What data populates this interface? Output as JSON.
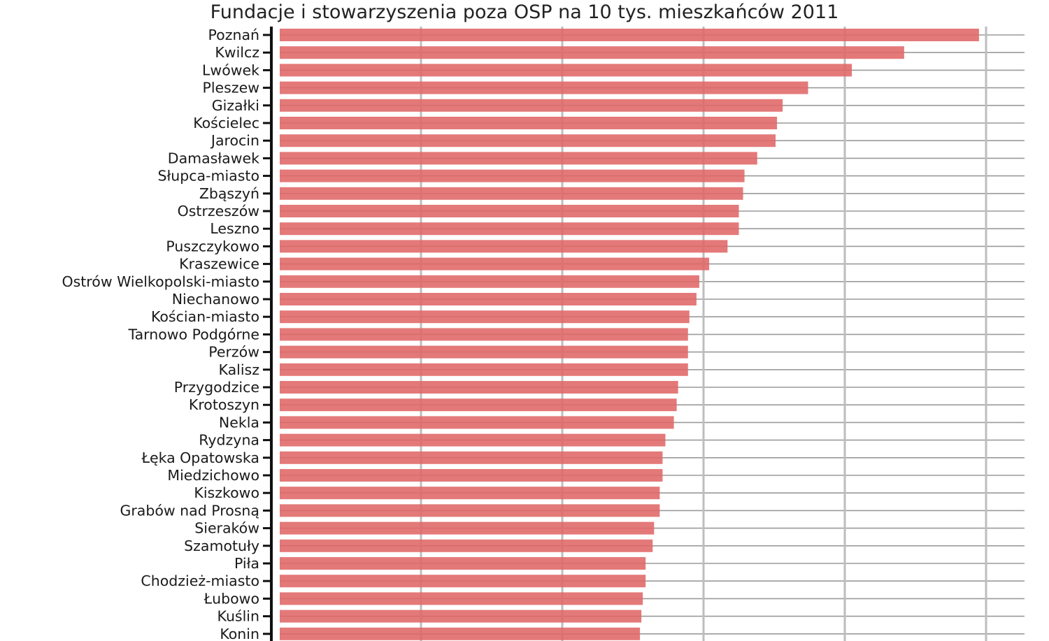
{
  "chart_data": {
    "type": "bar",
    "orientation": "horizontal",
    "title": "Fundacje i stowarzyszenia poza OSP na 10 tys. mieszkańców 2011",
    "xlabel": "",
    "ylabel": "",
    "xlim": [
      0,
      53
    ],
    "grid": true,
    "bar_color": "#e06666",
    "categories": [
      "Poznań",
      "Kwilcz",
      "Lwówek",
      "Pleszew",
      "Gizałki",
      "Kościelec",
      "Jarocin",
      "Damasławek",
      "Słupca-miasto",
      "Zbąszyń",
      "Ostrzeszów",
      "Leszno",
      "Puszczykowo",
      "Kraszewice",
      "Ostrów Wielkopolski-miasto",
      "Niechanowo",
      "Kościan-miasto",
      "Tarnowo Podgórne",
      "Perzów",
      "Kalisz",
      "Przygodzice",
      "Krotoszyn",
      "Nekla",
      "Rydzyna",
      "Łęka Opatowska",
      "Miedzichowo",
      "Kiszkowo",
      "Grabów nad Prosną",
      "Sieraków",
      "Szamotuły",
      "Piła",
      "Chodzież-miasto",
      "Łubowo",
      "Kuślin",
      "Konin"
    ],
    "values": [
      49.5,
      44.2,
      40.5,
      37.4,
      35.6,
      35.2,
      35.1,
      33.8,
      32.9,
      32.8,
      32.5,
      32.5,
      31.7,
      30.4,
      29.7,
      29.5,
      29.0,
      28.9,
      28.9,
      28.9,
      28.2,
      28.1,
      27.9,
      27.3,
      27.1,
      27.1,
      26.9,
      26.9,
      26.5,
      26.4,
      25.9,
      25.9,
      25.7,
      25.6,
      25.5
    ]
  }
}
